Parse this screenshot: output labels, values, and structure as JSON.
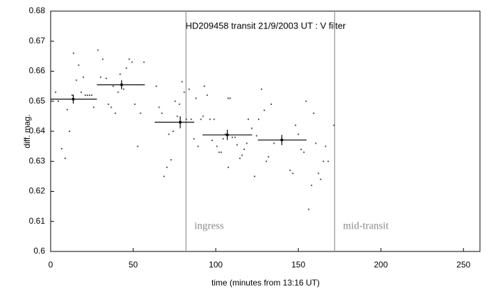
{
  "chart_data": {
    "type": "scatter",
    "title": "HD209458 transit 21/9/2003 UT : V filter",
    "xlabel": "time (minutes from 13:16 UT)",
    "ylabel": "diff. mag.",
    "xlim": [
      0,
      260
    ],
    "ylim": [
      0.6,
      0.68
    ],
    "xticks": [
      0,
      50,
      100,
      150,
      200,
      250
    ],
    "yticks": [
      0.6,
      0.61,
      0.62,
      0.63,
      0.64,
      0.65,
      0.66,
      0.67,
      0.68
    ],
    "color": "#555555",
    "x": [
      3,
      4.6,
      6.7,
      8.8,
      10,
      11.4,
      13,
      13.9,
      15.6,
      17,
      18.5,
      19.8,
      21,
      22.3,
      23.6,
      24.9,
      26.1,
      28.7,
      30.3,
      31.6,
      33.7,
      35,
      36.7,
      37.9,
      39.2,
      40.9,
      42.1,
      44.2,
      45.9,
      47.6,
      49.3,
      51,
      52.7,
      54.4,
      56.5,
      64,
      65.7,
      67.4,
      68.7,
      70.4,
      71.6,
      72.9,
      74.2,
      75.4,
      76.7,
      78,
      79.6,
      80.9,
      82.2,
      83.9,
      85.1,
      86.8,
      88.1,
      89.3,
      91,
      92.3,
      93.1,
      94.8,
      96.5,
      97.8,
      99,
      100.7,
      102,
      103.3,
      104.5,
      105.8,
      107.5,
      107.6,
      108.7,
      110,
      111.7,
      112.9,
      114.6,
      115.9,
      117.2,
      118.8,
      119.7,
      121.8,
      123.5,
      124.7,
      126,
      127.7,
      129.4,
      130.6,
      131.9,
      133.6,
      135.3,
      145,
      146.7,
      148.3,
      150,
      151.7,
      153.4,
      154.7,
      156.3,
      158,
      159.3,
      160.6,
      162.2,
      163.5,
      165.2,
      166.5,
      168.1,
      171.5
    ],
    "values": [
      0.653,
      0.65,
      0.6342,
      0.631,
      0.6472,
      0.64,
      0.652,
      0.666,
      0.657,
      0.662,
      0.653,
      0.658,
      0.652,
      0.652,
      0.652,
      0.652,
      0.648,
      0.667,
      0.658,
      0.664,
      0.6576,
      0.649,
      0.648,
      0.655,
      0.646,
      0.653,
      0.659,
      0.654,
      0.661,
      0.664,
      0.663,
      0.649,
      0.635,
      0.646,
      0.663,
      0.655,
      0.648,
      0.646,
      0.625,
      0.628,
      0.639,
      0.6305,
      0.64,
      0.65,
      0.645,
      0.649,
      0.6565,
      0.653,
      0.644,
      0.654,
      0.644,
      0.6375,
      0.651,
      0.635,
      0.644,
      0.645,
      0.655,
      0.652,
      0.644,
      0.637,
      0.644,
      0.635,
      0.633,
      0.633,
      0.6375,
      0.639,
      0.651,
      0.628,
      0.651,
      0.638,
      0.638,
      0.6355,
      0.631,
      0.632,
      0.634,
      0.636,
      0.644,
      0.641,
      0.625,
      0.6385,
      0.644,
      0.654,
      0.647,
      0.63,
      0.6315,
      0.649,
      0.636,
      0.627,
      0.626,
      0.642,
      0.639,
      0.634,
      0.633,
      0.65,
      0.614,
      0.622,
      0.646,
      0.636,
      0.626,
      0.624,
      0.63,
      0.635,
      0.63,
      0.642
    ],
    "means": {
      "x": [
        13.7,
        43,
        78.5,
        107,
        140
      ],
      "values": [
        0.6507,
        0.6555,
        0.643,
        0.6388,
        0.6371
      ],
      "errors": [
        0.0015,
        0.0015,
        0.002,
        0.0017,
        0.0017
      ],
      "x_start": [
        0,
        28,
        63,
        92,
        125.5
      ],
      "x_end": [
        28,
        57,
        87,
        122,
        155
      ]
    },
    "annotations": [
      {
        "text": "ingress",
        "x": 82
      },
      {
        "text": "mid-transit",
        "x": 172
      }
    ]
  }
}
